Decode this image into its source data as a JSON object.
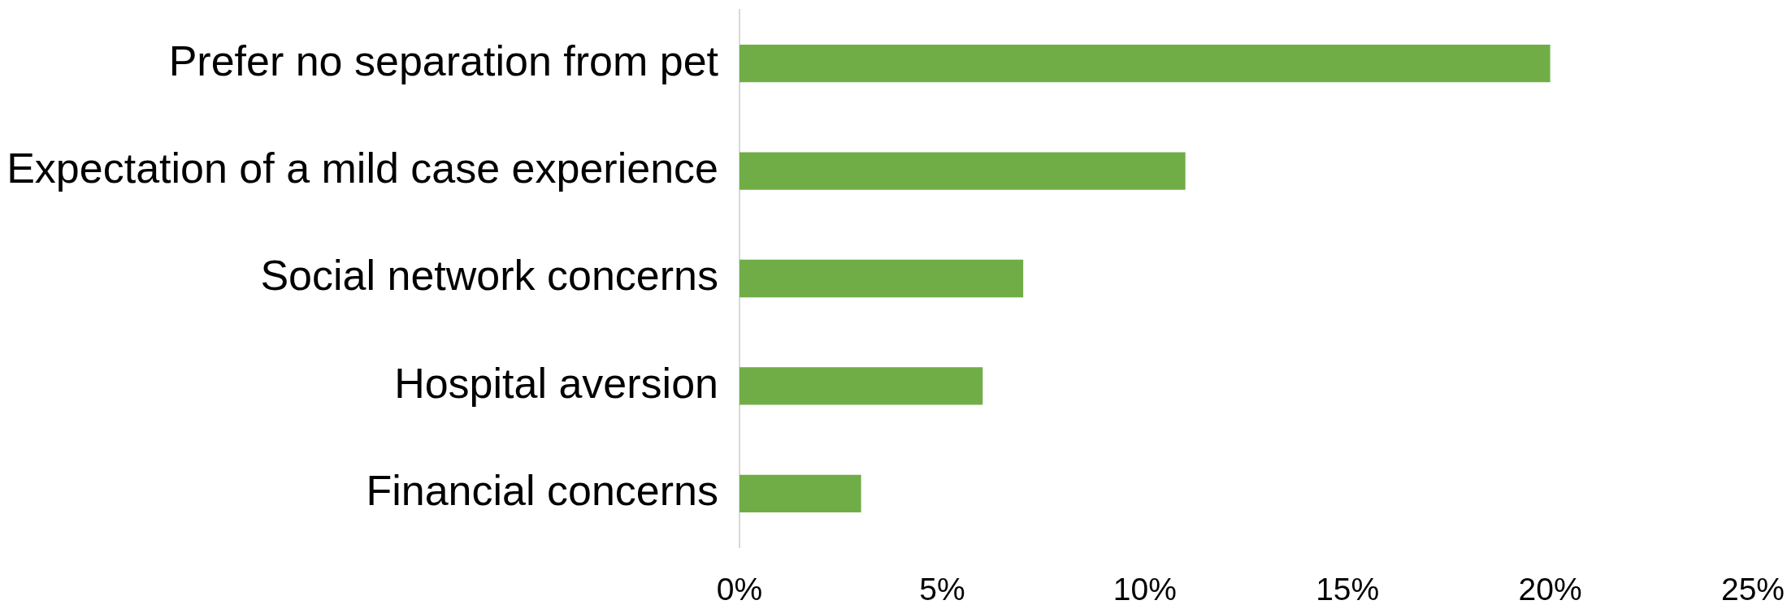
{
  "chart_data": {
    "type": "bar",
    "orientation": "horizontal",
    "categories": [
      "Prefer no separation from pet",
      "Expectation of a mild case experience",
      "Social network concerns",
      "Hospital aversion",
      "Financial concerns"
    ],
    "values": [
      20,
      11,
      7,
      6,
      3
    ],
    "color": "#70ad47",
    "xlim": [
      0,
      25
    ],
    "xticks": [
      {
        "value": 0,
        "label": "0%"
      },
      {
        "value": 5,
        "label": "5%"
      },
      {
        "value": 10,
        "label": "10%"
      },
      {
        "value": 15,
        "label": "15%"
      },
      {
        "value": 20,
        "label": "20%"
      },
      {
        "value": 25,
        "label": "25%"
      }
    ]
  }
}
